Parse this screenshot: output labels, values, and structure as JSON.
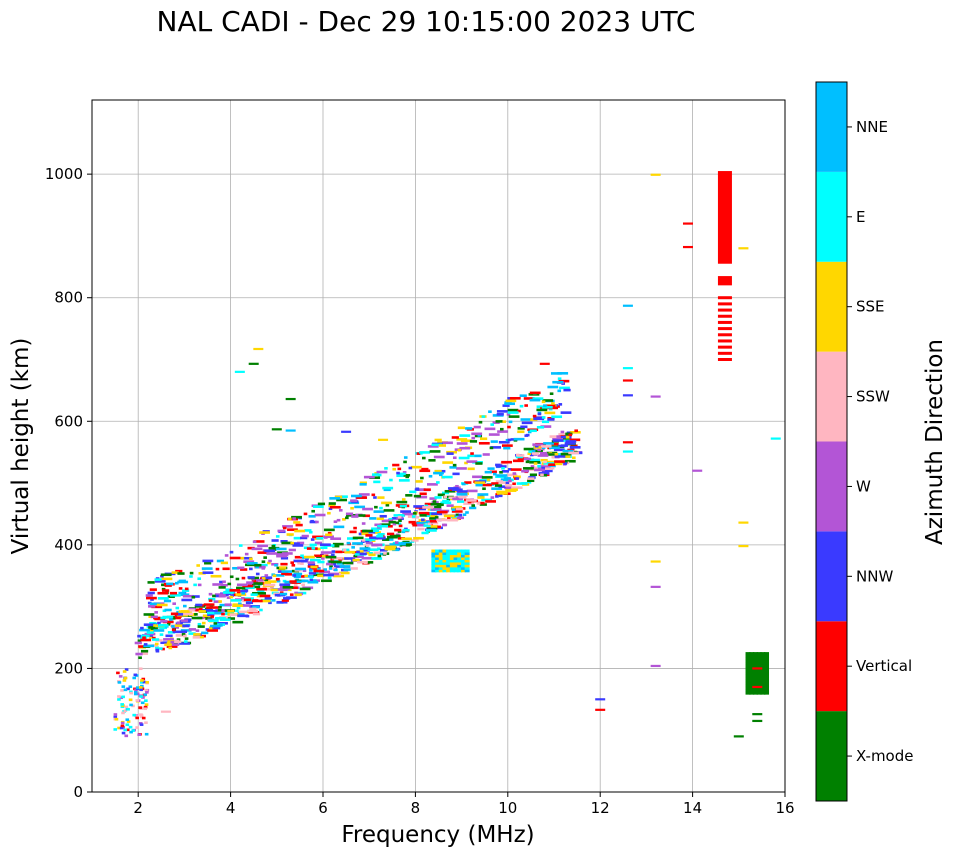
{
  "chart_data": {
    "type": "scatter",
    "title": "NAL CADI - Dec 29 10:15:00 2023 UTC",
    "xlabel": "Frequency (MHz)",
    "ylabel": "Virtual height (km)",
    "xlim": [
      1,
      16
    ],
    "ylim": [
      0,
      1120
    ],
    "xticks": [
      2,
      4,
      6,
      8,
      10,
      12,
      14,
      16
    ],
    "yticks": [
      0,
      200,
      400,
      600,
      800,
      1000
    ],
    "grid": true,
    "colorbar": {
      "label": "Azimuth Direction",
      "position": "right",
      "categories": [
        {
          "name": "X-mode",
          "color": "#008000"
        },
        {
          "name": "Vertical",
          "color": "#ff0000"
        },
        {
          "name": "NNW",
          "color": "#3a3aff"
        },
        {
          "name": "W",
          "color": "#b355d6"
        },
        {
          "name": "SSW",
          "color": "#ffb6c1"
        },
        {
          "name": "SSE",
          "color": "#ffd700"
        },
        {
          "name": "E",
          "color": "#00ffff"
        },
        {
          "name": "NNE",
          "color": "#00bfff"
        }
      ]
    },
    "series": [
      {
        "name": "E-region echoes",
        "type": "scatter_cloud",
        "x_range": [
          1.5,
          2.2
        ],
        "y_range": [
          90,
          200
        ],
        "density": 110,
        "mix": [
          "Vertical",
          "NNW",
          "NNE",
          "SSW",
          "W",
          "SSE",
          "E"
        ]
      },
      {
        "name": "F-layer O-mode trace",
        "type": "scatter_band",
        "f_start": 2.0,
        "f_end": 11.5,
        "h_start": 235,
        "h_end": 560,
        "spread": 55,
        "density": 900,
        "mix": [
          "Vertical",
          "SSW",
          "X-mode",
          "E",
          "NNE",
          "W",
          "NNW",
          "SSE"
        ]
      },
      {
        "name": "F-layer upper echoes",
        "type": "scatter_band",
        "f_start": 2.2,
        "f_end": 11.3,
        "h_start": 290,
        "h_end": 640,
        "spread": 80,
        "density": 500,
        "mix": [
          "X-mode",
          "E",
          "NNE",
          "W",
          "NNW",
          "Vertical",
          "SSE"
        ]
      },
      {
        "name": "Patch 8.4-9.2 MHz",
        "type": "block",
        "x_range": [
          8.4,
          9.2
        ],
        "y_range": [
          358,
          392
        ],
        "mix": [
          "E",
          "NNE",
          "SSE"
        ]
      },
      {
        "name": "Scattered high echoes",
        "type": "points",
        "points": [
          [
            4.2,
            680,
            "E"
          ],
          [
            4.6,
            717,
            "SSE"
          ],
          [
            4.5,
            693,
            "X-mode"
          ],
          [
            5.0,
            587,
            "X-mode"
          ],
          [
            5.3,
            636,
            "X-mode"
          ],
          [
            5.3,
            585,
            "NNE"
          ],
          [
            6.5,
            583,
            "NNW"
          ],
          [
            7.3,
            570,
            "SSE"
          ],
          [
            10.8,
            693,
            "Vertical"
          ],
          [
            12.6,
            787,
            "NNE"
          ],
          [
            12.6,
            686,
            "E"
          ],
          [
            12.6,
            666,
            "Vertical"
          ],
          [
            12.6,
            642,
            "NNW"
          ],
          [
            12.6,
            566,
            "Vertical"
          ],
          [
            12.6,
            551,
            "E"
          ],
          [
            13.2,
            999,
            "SSE"
          ],
          [
            13.2,
            640,
            "W"
          ],
          [
            13.2,
            373,
            "SSE"
          ],
          [
            13.2,
            332,
            "W"
          ],
          [
            13.2,
            204,
            "W"
          ],
          [
            14.1,
            520,
            "W"
          ],
          [
            15.1,
            880,
            "SSE"
          ],
          [
            15.1,
            436,
            "SSE"
          ],
          [
            15.1,
            398,
            "SSE"
          ],
          [
            15.8,
            572,
            "E"
          ],
          [
            12.0,
            150,
            "NNW"
          ],
          [
            12.0,
            133,
            "Vertical"
          ],
          [
            13.9,
            920,
            "Vertical"
          ],
          [
            13.9,
            882,
            "Vertical"
          ],
          [
            2.6,
            130,
            "SSW"
          ]
        ]
      },
      {
        "name": "Vertical column 14.7 MHz",
        "type": "column",
        "x": 14.7,
        "segments": [
          [
            855,
            1005
          ],
          [
            820,
            835
          ]
        ],
        "stripes": [
          700,
          710,
          720,
          730,
          740,
          750,
          760,
          770,
          780,
          790,
          800
        ],
        "color": "Vertical"
      },
      {
        "name": "X-mode block 15.4 MHz",
        "type": "block",
        "x_range": [
          15.2,
          15.65
        ],
        "y_range": [
          160,
          225
        ],
        "mix": [
          "X-mode"
        ]
      },
      {
        "name": "X-mode low echoes",
        "type": "points",
        "points": [
          [
            15.4,
            115,
            "X-mode"
          ],
          [
            15.4,
            126,
            "X-mode"
          ],
          [
            15.0,
            90,
            "X-mode"
          ],
          [
            15.4,
            200,
            "Vertical"
          ],
          [
            15.4,
            170,
            "Vertical"
          ]
        ]
      }
    ]
  }
}
